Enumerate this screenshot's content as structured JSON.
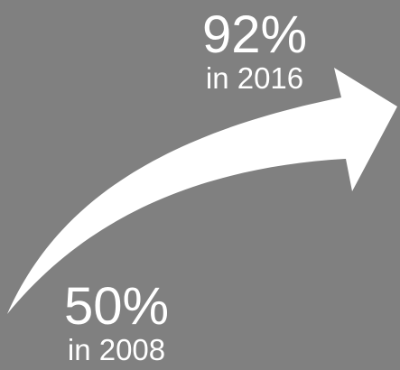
{
  "background_color": "#808080",
  "arrow": {
    "icon": "curved-arrow-icon",
    "color": "#ffffff"
  },
  "stats": {
    "start": {
      "value": "50%",
      "year": "in 2008"
    },
    "end": {
      "value": "92%",
      "year": "in 2016"
    }
  }
}
